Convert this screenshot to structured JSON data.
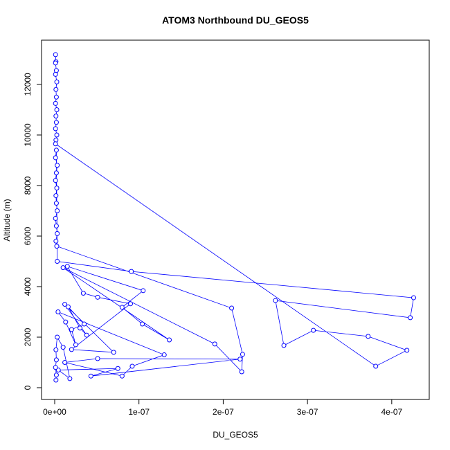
{
  "chart_data": {
    "type": "line",
    "markers": true,
    "title": "ATOM3 Northbound DU_GEOS5",
    "x_label": "DU_GEOS5",
    "y_label": "Altitude (m)",
    "color": "#0000ff",
    "xlim": [
      -1.56e-08,
      4.445e-07
    ],
    "ylim": [
      -466,
      13753
    ],
    "xticks": [
      {
        "value": 0,
        "label": "0e+00"
      },
      {
        "value": 1e-07,
        "label": "1e-07"
      },
      {
        "value": 2e-07,
        "label": "2e-07"
      },
      {
        "value": 3e-07,
        "label": "3e-07"
      },
      {
        "value": 4e-07,
        "label": "4e-07"
      }
    ],
    "yticks": [
      0,
      2000,
      4000,
      6000,
      8000,
      10000,
      12000
    ],
    "x": [
      1e-09,
      1.5e-09,
      1e-09,
      2e-09,
      1e-09,
      2.5e-09,
      1.5e-09,
      2e-09,
      1e-09,
      2.5e-09,
      1.5e-09,
      2e-09,
      1e-09,
      2.5e-09,
      1.5e-09,
      1e-09,
      3.81e-07,
      4.18e-07,
      3.72e-07,
      3.07e-07,
      2.72e-07,
      2.62e-07,
      4.22e-07,
      4.26e-07,
      9.1e-08,
      3e-09,
      2e-09,
      1e-09,
      3e-09,
      2e-09,
      1e-09,
      2.5e-09,
      1.5e-09,
      2e-09,
      3e-09,
      1e-09,
      2e-09,
      3e-09,
      1.5e-09,
      2.5e-09,
      2.1e-07,
      2.23e-07,
      2.22e-07,
      1.9e-07,
      1e-08,
      1.36e-07,
      1.04e-07,
      8e-08,
      1.05e-07,
      1.5e-08,
      3.4e-08,
      5.1e-08,
      9e-08,
      2e-08,
      7e-08,
      1.2e-08,
      3.8e-08,
      3e-08,
      1.6e-08,
      3.5e-08,
      2e-08,
      2.5e-08,
      1.3e-08,
      4e-09,
      1.3e-07,
      9.2e-08,
      8e-08,
      1.2e-08,
      5.1e-08,
      2.2e-07,
      4.3e-08,
      7.5e-08,
      4.3e-09,
      1.8e-08,
      1e-08,
      3e-09,
      1.5e-09,
      2e-09,
      1e-09,
      2e-09,
      1.5e-09
    ],
    "values": [
      13180,
      12900,
      12850,
      12550,
      12400,
      12100,
      11800,
      11500,
      11250,
      11000,
      10750,
      10500,
      10250,
      10000,
      9800,
      9650,
      850,
      1480,
      2030,
      2270,
      1670,
      3450,
      2770,
      3560,
      4600,
      5000,
      9400,
      9100,
      8800,
      8500,
      8200,
      7900,
      7600,
      7300,
      7000,
      6700,
      6400,
      6100,
      5800,
      5600,
      3150,
      1320,
      630,
      1730,
      4750,
      1890,
      2520,
      3180,
      3840,
      4800,
      3740,
      3580,
      3320,
      1510,
      1400,
      3300,
      2080,
      2360,
      3200,
      2520,
      2300,
      1700,
      2600,
      3000,
      1300,
      850,
      460,
      1000,
      1150,
      1130,
      460,
      760,
      700,
      360,
      1600,
      2000,
      1500,
      1100,
      800,
      500,
      300
    ]
  }
}
